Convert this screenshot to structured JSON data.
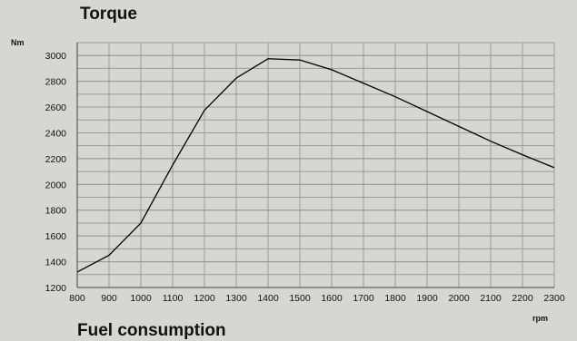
{
  "chart_data": {
    "type": "line",
    "title": "Torque",
    "ylabel": "Nm",
    "xlabel": "rpm",
    "xlim": [
      800,
      2300
    ],
    "ylim": [
      1200,
      3100
    ],
    "x_ticks": [
      800,
      900,
      1000,
      1100,
      1200,
      1300,
      1400,
      1500,
      1600,
      1700,
      1800,
      1900,
      2000,
      2100,
      2200,
      2300
    ],
    "y_ticks": [
      1200,
      1400,
      1600,
      1800,
      2000,
      2200,
      2400,
      2600,
      2800,
      3000
    ],
    "grid": true,
    "series": [
      {
        "x": [
          800,
          900,
          1000,
          1100,
          1200,
          1300,
          1400,
          1500,
          1600,
          1700,
          1800,
          1900,
          2000,
          2100,
          2200,
          2300
        ],
        "values": [
          1320,
          1450,
          1700,
          2150,
          2575,
          2825,
          2975,
          2965,
          2890,
          2785,
          2680,
          2565,
          2450,
          2335,
          2230,
          2130
        ]
      }
    ]
  },
  "next_section_title": "Fuel consumption"
}
